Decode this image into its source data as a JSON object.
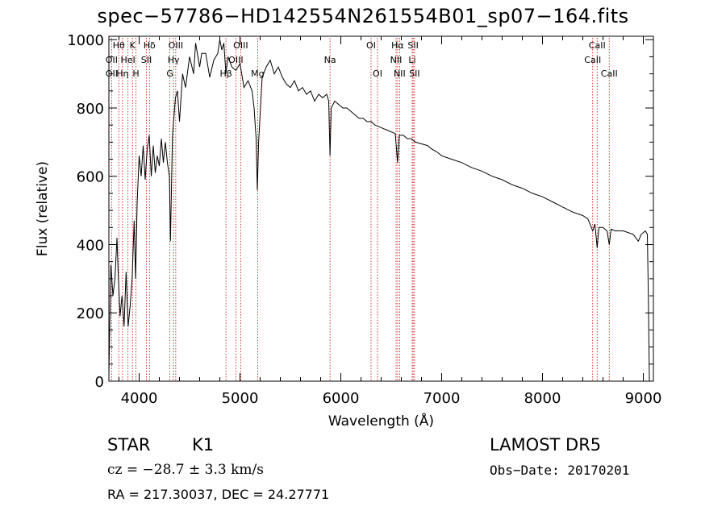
{
  "title": "spec−57786−HD142554N261554B01_sp07−164.fits",
  "info": {
    "object_class": "STAR",
    "subclass": "K1",
    "survey": "LAMOST DR5",
    "cz": "cz = −28.7 ± 3.3 km/s",
    "obs_date": "Obs−Date: 20170201",
    "radec": "RA = 217.30037, DEC =  24.27771"
  },
  "chart_data": {
    "type": "line",
    "title": "spec−57786−HD142554N261554B01_sp07−164.fits",
    "xlabel": "Wavelength (Å)",
    "ylabel": "Flux (relative)",
    "xlim": [
      3700,
      9100
    ],
    "ylim": [
      0,
      1010
    ],
    "x_ticks": [
      4000,
      5000,
      6000,
      7000,
      8000,
      9000
    ],
    "y_ticks": [
      0,
      200,
      400,
      600,
      800,
      1000
    ],
    "grid": false,
    "line_color": "#000000",
    "marker_color": "#cc0000",
    "series": [
      {
        "points": [
          [
            3700,
            20
          ],
          [
            3720,
            340
          ],
          [
            3740,
            250
          ],
          [
            3760,
            300
          ],
          [
            3780,
            420
          ],
          [
            3790,
            330
          ],
          [
            3810,
            190
          ],
          [
            3830,
            250
          ],
          [
            3850,
            160
          ],
          [
            3870,
            320
          ],
          [
            3890,
            160
          ],
          [
            3910,
            220
          ],
          [
            3930,
            300
          ],
          [
            3950,
            470
          ],
          [
            3965,
            300
          ],
          [
            3980,
            520
          ],
          [
            4000,
            660
          ],
          [
            4020,
            600
          ],
          [
            4040,
            690
          ],
          [
            4060,
            590
          ],
          [
            4080,
            680
          ],
          [
            4100,
            720
          ],
          [
            4120,
            600
          ],
          [
            4140,
            690
          ],
          [
            4160,
            610
          ],
          [
            4180,
            660
          ],
          [
            4200,
            630
          ],
          [
            4220,
            710
          ],
          [
            4240,
            640
          ],
          [
            4260,
            700
          ],
          [
            4280,
            640
          ],
          [
            4300,
            600
          ],
          [
            4310,
            410
          ],
          [
            4330,
            720
          ],
          [
            4360,
            830
          ],
          [
            4380,
            850
          ],
          [
            4400,
            760
          ],
          [
            4430,
            900
          ],
          [
            4460,
            860
          ],
          [
            4500,
            950
          ],
          [
            4540,
            900
          ],
          [
            4560,
            990
          ],
          [
            4600,
            920
          ],
          [
            4620,
            960
          ],
          [
            4660,
            960
          ],
          [
            4700,
            890
          ],
          [
            4740,
            940
          ],
          [
            4780,
            960
          ],
          [
            4800,
            1000
          ],
          [
            4820,
            970
          ],
          [
            4840,
            990
          ],
          [
            4861,
            900
          ],
          [
            4880,
            950
          ],
          [
            4920,
            920
          ],
          [
            4960,
            910
          ],
          [
            5000,
            930
          ],
          [
            5040,
            860
          ],
          [
            5080,
            880
          ],
          [
            5120,
            850
          ],
          [
            5140,
            800
          ],
          [
            5160,
            710
          ],
          [
            5172,
            560
          ],
          [
            5185,
            700
          ],
          [
            5220,
            890
          ],
          [
            5260,
            920
          ],
          [
            5300,
            940
          ],
          [
            5340,
            900
          ],
          [
            5380,
            920
          ],
          [
            5420,
            890
          ],
          [
            5460,
            870
          ],
          [
            5500,
            860
          ],
          [
            5540,
            880
          ],
          [
            5580,
            850
          ],
          [
            5620,
            860
          ],
          [
            5660,
            840
          ],
          [
            5700,
            850
          ],
          [
            5740,
            820
          ],
          [
            5780,
            840
          ],
          [
            5820,
            830
          ],
          [
            5860,
            840
          ],
          [
            5880,
            820
          ],
          [
            5893,
            660
          ],
          [
            5905,
            800
          ],
          [
            5940,
            820
          ],
          [
            5980,
            810
          ],
          [
            6020,
            800
          ],
          [
            6060,
            800
          ],
          [
            6100,
            790
          ],
          [
            6140,
            780
          ],
          [
            6180,
            770
          ],
          [
            6220,
            770
          ],
          [
            6260,
            760
          ],
          [
            6300,
            760
          ],
          [
            6340,
            750
          ],
          [
            6380,
            745
          ],
          [
            6420,
            740
          ],
          [
            6460,
            735
          ],
          [
            6500,
            730
          ],
          [
            6540,
            725
          ],
          [
            6563,
            640
          ],
          [
            6580,
            720
          ],
          [
            6620,
            720
          ],
          [
            6660,
            710
          ],
          [
            6700,
            710
          ],
          [
            6740,
            700
          ],
          [
            6800,
            695
          ],
          [
            6860,
            690
          ],
          [
            6900,
            680
          ],
          [
            6960,
            670
          ],
          [
            7000,
            660
          ],
          [
            7100,
            650
          ],
          [
            7200,
            640
          ],
          [
            7300,
            625
          ],
          [
            7400,
            615
          ],
          [
            7500,
            600
          ],
          [
            7600,
            590
          ],
          [
            7700,
            575
          ],
          [
            7800,
            565
          ],
          [
            7900,
            550
          ],
          [
            8000,
            540
          ],
          [
            8100,
            525
          ],
          [
            8200,
            510
          ],
          [
            8300,
            495
          ],
          [
            8400,
            485
          ],
          [
            8450,
            475
          ],
          [
            8498,
            440
          ],
          [
            8520,
            460
          ],
          [
            8542,
            390
          ],
          [
            8560,
            450
          ],
          [
            8600,
            450
          ],
          [
            8640,
            440
          ],
          [
            8662,
            400
          ],
          [
            8680,
            445
          ],
          [
            8720,
            440
          ],
          [
            8800,
            440
          ],
          [
            8900,
            430
          ],
          [
            8950,
            410
          ],
          [
            8980,
            430
          ],
          [
            9020,
            440
          ],
          [
            9040,
            430
          ],
          [
            9050,
            240
          ],
          [
            9060,
            0
          ]
        ]
      }
    ],
    "line_markers": [
      {
        "label": "Hθ",
        "wavelength": 3798,
        "row": 0
      },
      {
        "label": "OII",
        "wavelength": 3727,
        "row": 1
      },
      {
        "label": "OII",
        "wavelength": 3727,
        "row": 2
      },
      {
        "label": "K",
        "wavelength": 3934,
        "row": 0
      },
      {
        "label": "HeI",
        "wavelength": 3889,
        "row": 1
      },
      {
        "label": "Hη",
        "wavelength": 3835,
        "row": 2
      },
      {
        "label": "H",
        "wavelength": 3968,
        "row": 2
      },
      {
        "label": "Hδ",
        "wavelength": 4102,
        "row": 0
      },
      {
        "label": "SII",
        "wavelength": 4072,
        "row": 1
      },
      {
        "label": "OIII",
        "wavelength": 4363,
        "row": 0
      },
      {
        "label": "Hγ",
        "wavelength": 4341,
        "row": 1
      },
      {
        "label": "G",
        "wavelength": 4305,
        "row": 2
      },
      {
        "label": "OIII",
        "wavelength": 5007,
        "row": 0
      },
      {
        "label": "OIII",
        "wavelength": 4959,
        "row": 1
      },
      {
        "label": "Hβ",
        "wavelength": 4861,
        "row": 2
      },
      {
        "label": "Mg",
        "wavelength": 5175,
        "row": 2
      },
      {
        "label": "Na",
        "wavelength": 5893,
        "row": 1
      },
      {
        "label": "OI",
        "wavelength": 6300,
        "row": 0
      },
      {
        "label": "OI",
        "wavelength": 6364,
        "row": 2
      },
      {
        "label": "Hα",
        "wavelength": 6563,
        "row": 0
      },
      {
        "label": "NII",
        "wavelength": 6548,
        "row": 1
      },
      {
        "label": "NII",
        "wavelength": 6583,
        "row": 2
      },
      {
        "label": "SII",
        "wavelength": 6717,
        "row": 0
      },
      {
        "label": "Li",
        "wavelength": 6708,
        "row": 1
      },
      {
        "label": "SII",
        "wavelength": 6731,
        "row": 2
      },
      {
        "label": "CaII",
        "wavelength": 8542,
        "row": 0
      },
      {
        "label": "CaII",
        "wavelength": 8498,
        "row": 1
      },
      {
        "label": "CaII",
        "wavelength": 8662,
        "row": 2
      }
    ]
  }
}
